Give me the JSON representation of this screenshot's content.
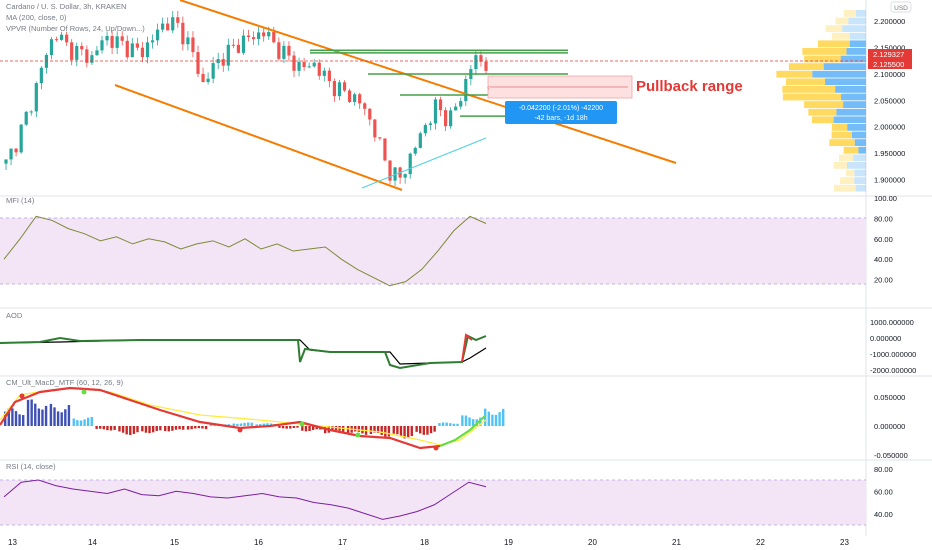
{
  "header": {
    "symbol_line": "Cardano / U. S. Dollar, 3h, KRAKEN",
    "ma_line": "MA (200, close, 0)",
    "vpvr_line": "VPVR (Number Of Rows, 24, Up/Down...)"
  },
  "currency_badge": "USD",
  "price_axis": [
    "2.200000",
    "2.150000",
    "2.100000",
    "2.050000",
    "2.000000",
    "1.950000",
    "1.900000"
  ],
  "price_badges": {
    "current": "2.129327",
    "secondary": "2.125500"
  },
  "annotation": {
    "text": "Pullback range",
    "measure_line1": "-0.042200 (-2.01%) -42200",
    "measure_line2": "-42 bars, -1d 18h"
  },
  "colors": {
    "up_candle": "#26a69a",
    "down_candle": "#ef5350",
    "channel": "#f57c00",
    "levels": "#43a047",
    "price_line": "#e53935",
    "band_fill": "#f3e5f5",
    "vp_up": "#64b5f6",
    "vp_down": "#ffd54f"
  },
  "panels": {
    "mfi": {
      "label": "MFI (14)",
      "ticks": [
        "100.00",
        "80.00",
        "60.00",
        "40.00",
        "20.00"
      ]
    },
    "aod": {
      "label": "AOD",
      "ticks": [
        "1000.000000",
        "0.000000",
        "-1000.000000",
        "-2000.000000"
      ]
    },
    "macd": {
      "label": "CM_Ult_MacD_MTF (60, 12, 26, 9)",
      "ticks": [
        "0.050000",
        "0.000000",
        "-0.050000"
      ]
    },
    "rsi": {
      "label": "RSI (14, close)",
      "ticks": [
        "80.00",
        "60.00",
        "40.00"
      ]
    }
  },
  "x_axis": [
    "13",
    "14",
    "15",
    "16",
    "17",
    "18",
    "19",
    "20",
    "21",
    "22",
    "23"
  ],
  "chart_data": {
    "type": "candlestick",
    "note_series": "approximate path of the ADA/USD price (3h bars) read from the chart",
    "x": [
      "13",
      "14",
      "15",
      "16",
      "17",
      "18",
      "19"
    ],
    "ylim": [
      1.88,
      2.225
    ],
    "price_path": [
      1.93,
      1.98,
      2.04,
      2.12,
      2.18,
      2.15,
      2.14,
      2.13,
      2.17,
      2.16,
      2.15,
      2.14,
      2.17,
      2.2,
      2.19,
      2.15,
      2.08,
      2.12,
      2.14,
      2.16,
      2.17,
      2.18,
      2.15,
      2.13,
      2.11,
      2.12,
      2.09,
      2.07,
      2.06,
      2.04,
      1.99,
      1.92,
      1.9,
      1.95,
      2.0,
      2.04,
      2.01,
      2.06,
      2.13,
      2.12
    ],
    "levels": [
      2.145,
      2.14,
      2.1,
      2.06,
      2.02
    ],
    "current_price": 2.129327,
    "mfi": [
      40,
      60,
      82,
      78,
      70,
      65,
      58,
      62,
      55,
      60,
      57,
      50,
      55,
      58,
      52,
      60,
      50,
      55,
      48,
      50,
      52,
      40,
      30,
      22,
      14,
      18,
      30,
      48,
      68,
      82,
      75
    ],
    "rsi": [
      55,
      68,
      70,
      65,
      62,
      60,
      58,
      62,
      57,
      56,
      60,
      58,
      55,
      54,
      56,
      58,
      55,
      54,
      50,
      48,
      45,
      40,
      35,
      38,
      42,
      48,
      58,
      68,
      64
    ],
    "macd_hist": [
      0.02,
      0.03,
      0.025,
      0.01,
      -0.005,
      -0.01,
      -0.008,
      -0.006,
      -0.004,
      0.002,
      0.004,
      0.003,
      -0.003,
      -0.006,
      -0.008,
      -0.01,
      -0.012,
      -0.014,
      -0.01,
      0.004,
      0.012,
      0.02
    ]
  }
}
